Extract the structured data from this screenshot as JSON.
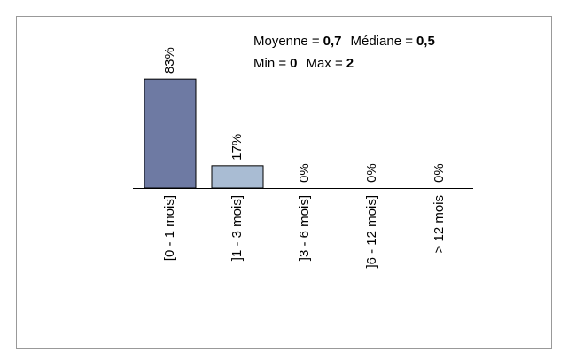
{
  "chart_data": {
    "type": "bar",
    "categories": [
      "[0 - 1 mois]",
      "]1 - 3 mois]",
      "]3 - 6 mois]",
      "]6 - 12 mois]",
      "> 12 mois"
    ],
    "values": [
      83,
      17,
      0,
      0,
      0
    ],
    "value_labels": [
      "83%",
      "17%",
      "0%",
      "0%",
      "0%"
    ],
    "colors": [
      "#6e7aa3",
      "#a9bcd3",
      "#a9bcd3",
      "#a9bcd3",
      "#a9bcd3"
    ],
    "annotations": [
      [
        {
          "label": "Moyenne =",
          "value": "0,7"
        },
        {
          "label": "Médiane =",
          "value": "0,5"
        }
      ],
      [
        {
          "label": "Min =",
          "value": "0"
        },
        {
          "label": "Max =",
          "value": "2"
        }
      ]
    ]
  }
}
